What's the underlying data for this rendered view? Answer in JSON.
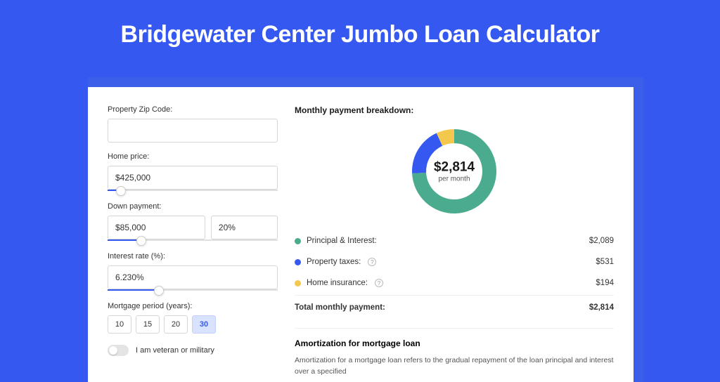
{
  "page": {
    "title": "Bridgewater Center Jumbo Loan Calculator",
    "background_color": "#3559f0",
    "card_background": "#ffffff"
  },
  "form": {
    "zip": {
      "label": "Property Zip Code:",
      "value": ""
    },
    "home_price": {
      "label": "Home price:",
      "value": "$425,000",
      "slider_pct": 8
    },
    "down_payment": {
      "label": "Down payment:",
      "value": "$85,000",
      "pct": "20%",
      "slider_pct": 20
    },
    "interest_rate": {
      "label": "Interest rate (%):",
      "value": "6.230%",
      "slider_pct": 30
    },
    "mortgage_period": {
      "label": "Mortgage period (years):",
      "options": [
        "10",
        "15",
        "20",
        "30"
      ],
      "selected": "30"
    },
    "veteran": {
      "label": "I am veteran or military",
      "checked": false
    }
  },
  "breakdown": {
    "title": "Monthly payment breakdown:",
    "donut": {
      "center_value": "$2,814",
      "center_sub": "per month",
      "size": 128,
      "thickness": 20,
      "segments": [
        {
          "key": "principal_interest",
          "value": 2089,
          "color": "#4aab8e"
        },
        {
          "key": "property_taxes",
          "value": 531,
          "color": "#3559f0"
        },
        {
          "key": "home_insurance",
          "value": 194,
          "color": "#f3c84d"
        }
      ]
    },
    "legend": [
      {
        "dot": "#4aab8e",
        "label": "Principal & Interest:",
        "info": false,
        "value": "$2,089"
      },
      {
        "dot": "#3559f0",
        "label": "Property taxes:",
        "info": true,
        "value": "$531"
      },
      {
        "dot": "#f3c84d",
        "label": "Home insurance:",
        "info": true,
        "value": "$194"
      }
    ],
    "total": {
      "label": "Total monthly payment:",
      "value": "$2,814"
    }
  },
  "amortization": {
    "title": "Amortization for mortgage loan",
    "text": "Amortization for a mortgage loan refers to the gradual repayment of the loan principal and interest over a specified"
  }
}
